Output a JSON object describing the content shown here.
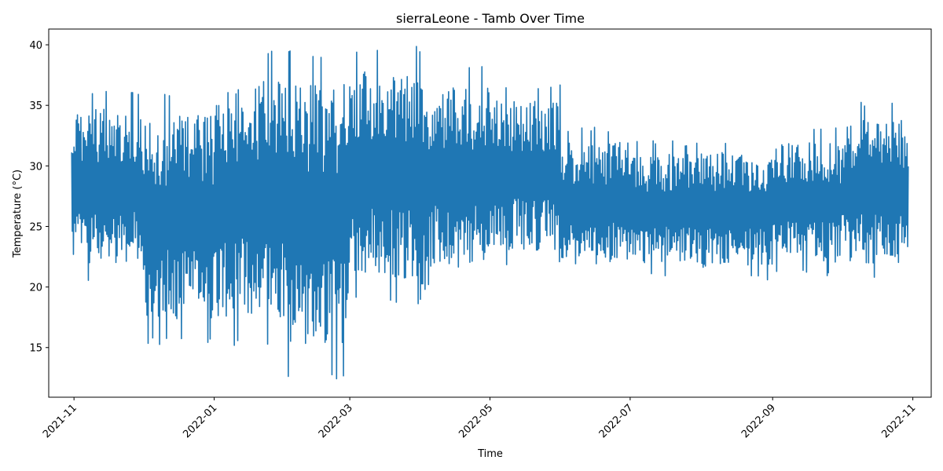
{
  "chart_data": {
    "type": "line",
    "title": "sierraLeone - Tamb Over Time",
    "xlabel": "Time",
    "ylabel": "Temperature (°C)",
    "x_range": [
      "2021-10-21",
      "2022-11-09"
    ],
    "ylim": [
      10.9,
      41.3
    ],
    "x_ticks": [
      "2021-11",
      "2022-01",
      "2022-03",
      "2022-05",
      "2022-07",
      "2022-09",
      "2022-11"
    ],
    "y_ticks": [
      15,
      20,
      25,
      30,
      35,
      40
    ],
    "grid": false,
    "legend": "none",
    "color": "#1f77b4",
    "series": [
      {
        "x_start": "2021-10-31",
        "x_end": "2022-10-30",
        "monthly_envelope": [
          {
            "month": "2021-11",
            "min": 20.4,
            "max": 36.3
          },
          {
            "month": "2021-12",
            "min": 15.2,
            "max": 36.3
          },
          {
            "month": "2022-01",
            "min": 15.0,
            "max": 39.6
          },
          {
            "month": "2022-02",
            "min": 12.3,
            "max": 39.5
          },
          {
            "month": "2022-03",
            "min": 18.6,
            "max": 39.9
          },
          {
            "month": "2022-04",
            "min": 19.7,
            "max": 38.3
          },
          {
            "month": "2022-05",
            "min": 21.5,
            "max": 36.9
          },
          {
            "month": "2022-06",
            "min": 20.6,
            "max": 33.2
          },
          {
            "month": "2022-07",
            "min": 20.8,
            "max": 32.1
          },
          {
            "month": "2022-08",
            "min": 20.4,
            "max": 32.3
          },
          {
            "month": "2022-09",
            "min": 20.8,
            "max": 33.2
          },
          {
            "month": "2022-10",
            "min": 20.5,
            "max": 35.3
          }
        ]
      }
    ]
  }
}
